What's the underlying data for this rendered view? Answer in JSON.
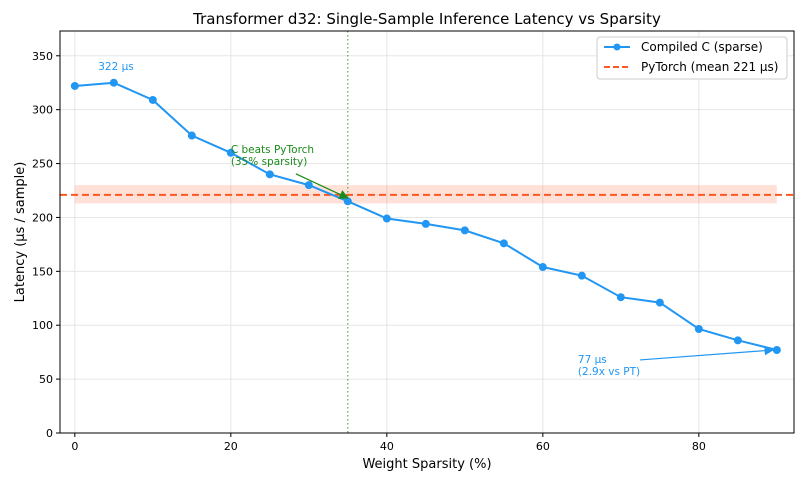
{
  "chart_data": {
    "type": "line",
    "title": "Transformer d32: Single-Sample Inference Latency vs Sparsity",
    "xlabel": "Weight Sparsity (%)",
    "ylabel": "Latency (µs / sample)",
    "xlim": [
      -1.9,
      92.2
    ],
    "ylim": [
      0,
      373
    ],
    "xticks": [
      0,
      20,
      40,
      60,
      80
    ],
    "yticks": [
      0,
      50,
      100,
      150,
      200,
      250,
      300,
      350
    ],
    "grid": true,
    "legend_position": "top-right",
    "series": [
      {
        "name": "Compiled C (sparse)",
        "color": "#2196f3",
        "x": [
          0,
          5,
          10,
          15,
          20,
          25,
          30,
          35,
          40,
          45,
          50,
          55,
          60,
          65,
          70,
          75,
          80,
          85,
          90
        ],
        "y": [
          322,
          325,
          309,
          276,
          260,
          240,
          230,
          215,
          199,
          194,
          188,
          176,
          154,
          146,
          126,
          121,
          96.5,
          86,
          77
        ]
      }
    ],
    "reference_line": {
      "name": "PyTorch (mean 221 µs)",
      "color": "#ff5722",
      "y": 221,
      "band": [
        213,
        230
      ]
    },
    "vertical_line": {
      "x": 35,
      "color": "#2e9d2e"
    },
    "annotations": [
      {
        "text": "322 µs",
        "color": "#2196f3",
        "x": 3,
        "y": 337
      },
      {
        "lines": [
          "C beats PyTorch",
          "(35% sparsity)"
        ],
        "color": "#1a8a1a",
        "x": 20,
        "y": 260,
        "arrow_to": [
          35,
          218
        ]
      },
      {
        "lines": [
          "77 µs",
          "(2.9x vs PT)"
        ],
        "color": "#2196f3",
        "x": 64.5,
        "y": 65,
        "arrow_to": [
          89.5,
          77
        ]
      }
    ]
  }
}
